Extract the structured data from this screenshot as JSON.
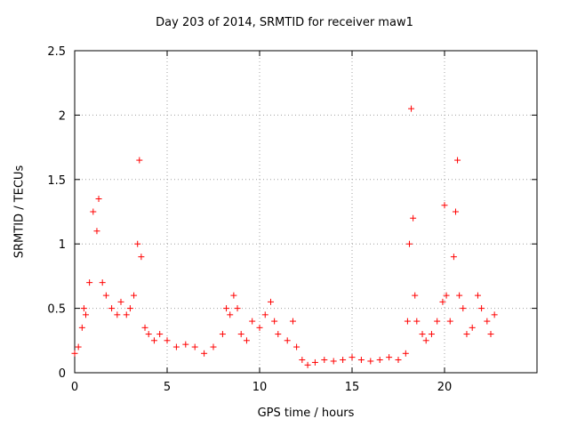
{
  "chart_data": {
    "type": "scatter",
    "title": "Day 203 of 2014, SRMTID for receiver maw1",
    "xlabel": "GPS time / hours",
    "ylabel": "SRMTID / TECUs",
    "xlim": [
      0,
      25
    ],
    "ylim": [
      0,
      2.5
    ],
    "xticks": [
      0,
      5,
      10,
      15,
      20
    ],
    "xtick_labels": [
      "0",
      "5",
      "10",
      "15",
      "20"
    ],
    "yticks": [
      0,
      0.5,
      1,
      1.5,
      2,
      2.5
    ],
    "ytick_labels": [
      "0",
      "0.5",
      "1",
      "1.5",
      "2",
      "2.5"
    ],
    "grid": true,
    "marker": "+",
    "series": [
      {
        "name": "SRMTID",
        "color": "#ff0000",
        "x": [
          0.0,
          0.2,
          0.4,
          0.5,
          0.6,
          0.8,
          1.0,
          1.2,
          1.3,
          1.5,
          1.7,
          2.0,
          2.3,
          2.5,
          2.8,
          3.0,
          3.2,
          3.4,
          3.5,
          3.6,
          3.8,
          4.0,
          4.3,
          4.6,
          5.0,
          5.5,
          6.0,
          6.5,
          7.0,
          7.5,
          8.0,
          8.2,
          8.4,
          8.6,
          8.8,
          9.0,
          9.3,
          9.6,
          10.0,
          10.3,
          10.6,
          10.8,
          11.0,
          11.5,
          11.8,
          12.0,
          12.3,
          12.6,
          13.0,
          13.5,
          14.0,
          14.5,
          15.0,
          15.5,
          16.0,
          16.5,
          17.0,
          17.5,
          17.9,
          18.0,
          18.1,
          18.2,
          18.3,
          18.4,
          18.5,
          18.8,
          19.0,
          19.3,
          19.6,
          19.9,
          20.0,
          20.1,
          20.3,
          20.5,
          20.6,
          20.7,
          20.8,
          21.0,
          21.2,
          21.5,
          21.8,
          22.0,
          22.3,
          22.5,
          22.7
        ],
        "y": [
          0.15,
          0.2,
          0.35,
          0.5,
          0.45,
          0.7,
          1.25,
          1.1,
          1.35,
          0.7,
          0.6,
          0.5,
          0.45,
          0.55,
          0.45,
          0.5,
          0.6,
          1.0,
          1.65,
          0.9,
          0.35,
          0.3,
          0.25,
          0.3,
          0.25,
          0.2,
          0.22,
          0.2,
          0.15,
          0.2,
          0.3,
          0.5,
          0.45,
          0.6,
          0.5,
          0.3,
          0.25,
          0.4,
          0.35,
          0.45,
          0.55,
          0.4,
          0.3,
          0.25,
          0.4,
          0.2,
          0.1,
          0.06,
          0.08,
          0.1,
          0.09,
          0.1,
          0.12,
          0.1,
          0.09,
          0.1,
          0.12,
          0.1,
          0.15,
          0.4,
          1.0,
          2.05,
          1.2,
          0.6,
          0.4,
          0.3,
          0.25,
          0.3,
          0.4,
          0.55,
          1.3,
          0.6,
          0.4,
          0.9,
          1.25,
          1.65,
          0.6,
          0.5,
          0.3,
          0.35,
          0.6,
          0.5,
          0.4,
          0.3,
          0.45
        ]
      }
    ]
  }
}
